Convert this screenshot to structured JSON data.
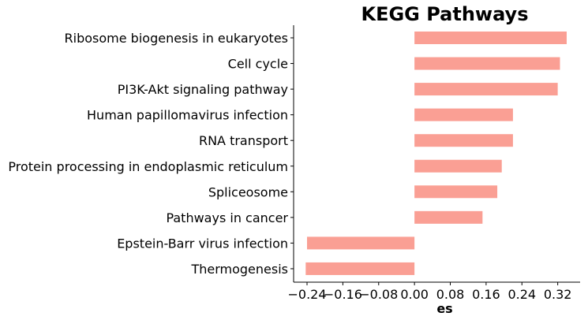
{
  "chart_data": {
    "type": "bar",
    "orientation": "horizontal",
    "title": "KEGG Pathways",
    "xlabel": "es",
    "ylabel": "",
    "categories": [
      "Ribosome biogenesis in eukaryotes",
      "Cell cycle",
      "PI3K-Akt signaling pathway",
      "Human papillomavirus infection",
      "RNA transport",
      "Protein processing in endoplasmic reticulum",
      "Spliceosome",
      "Pathways in cancer",
      "Epstein-Barr virus infection",
      "Thermogenesis"
    ],
    "values": [
      0.34,
      0.325,
      0.32,
      0.22,
      0.22,
      0.195,
      0.185,
      0.152,
      -0.24,
      -0.243
    ],
    "xlim": [
      -0.27,
      0.37
    ],
    "xticks": [
      -0.24,
      -0.16,
      -0.08,
      0.0,
      0.08,
      0.16,
      0.24,
      0.32
    ],
    "xtick_labels": [
      "−0.24",
      "−0.16",
      "−0.08",
      "0.00",
      "0.08",
      "0.16",
      "0.24",
      "0.32"
    ],
    "bar_color": "#fa9f94",
    "grid": false,
    "legend": "none"
  }
}
